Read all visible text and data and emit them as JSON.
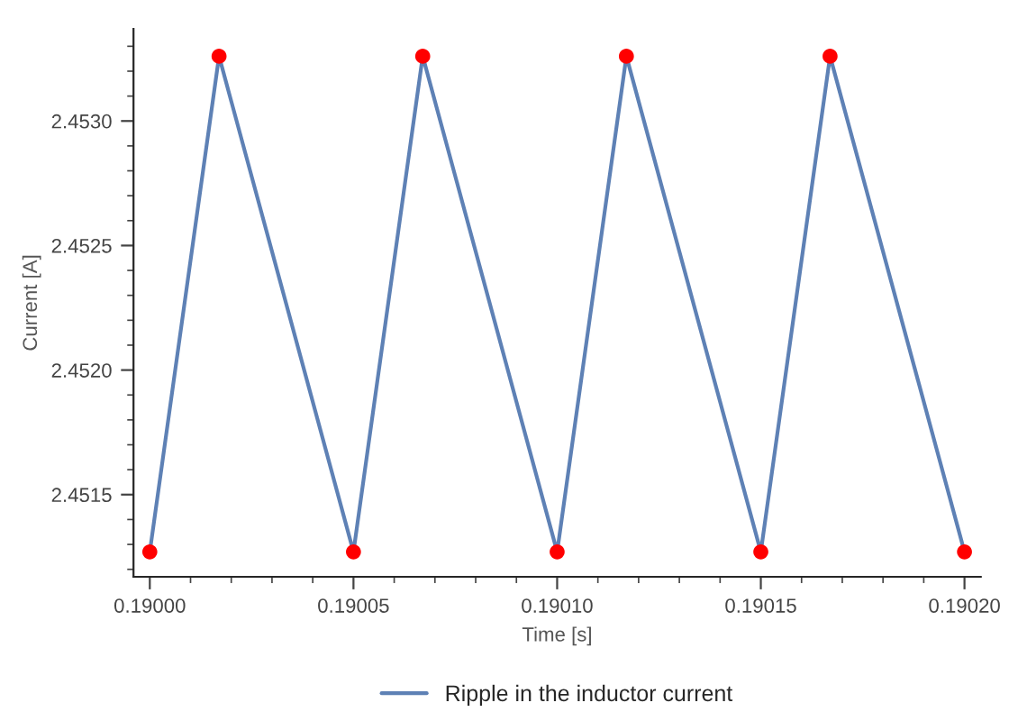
{
  "chart_data": {
    "type": "line",
    "xlabel": "Time [s]",
    "ylabel": "Current [A]",
    "x": [
      0.19,
      0.190017,
      0.19005,
      0.190067,
      0.1901,
      0.190117,
      0.19015,
      0.190167,
      0.1902
    ],
    "series": [
      {
        "name": "Ripple in the inductor current",
        "color": "#5e81b5",
        "marker": "none",
        "values": [
          2.45127,
          2.45326,
          2.45127,
          2.45326,
          2.45127,
          2.45326,
          2.45127,
          2.45326,
          2.45127
        ]
      },
      {
        "type": "scatter",
        "color": "#ff0000",
        "marker": "circle",
        "values": [
          2.45127,
          2.45326,
          2.45127,
          2.45326,
          2.45127,
          2.45326,
          2.45127,
          2.45326,
          2.45127
        ]
      }
    ],
    "xlim": [
      0.189996,
      0.190204
    ],
    "ylim": [
      2.45117,
      2.45337
    ],
    "xticks": [
      {
        "value": 0.19,
        "label": "0.19000"
      },
      {
        "value": 0.19001,
        "label": null
      },
      {
        "value": 0.19002,
        "label": null
      },
      {
        "value": 0.19003,
        "label": null
      },
      {
        "value": 0.19004,
        "label": null
      },
      {
        "value": 0.19005,
        "label": "0.19005"
      },
      {
        "value": 0.19006,
        "label": null
      },
      {
        "value": 0.19007,
        "label": null
      },
      {
        "value": 0.19008,
        "label": null
      },
      {
        "value": 0.19009,
        "label": null
      },
      {
        "value": 0.1901,
        "label": "0.19010"
      },
      {
        "value": 0.19011,
        "label": null
      },
      {
        "value": 0.19012,
        "label": null
      },
      {
        "value": 0.19013,
        "label": null
      },
      {
        "value": 0.19014,
        "label": null
      },
      {
        "value": 0.19015,
        "label": "0.19015"
      },
      {
        "value": 0.19016,
        "label": null
      },
      {
        "value": 0.19017,
        "label": null
      },
      {
        "value": 0.19018,
        "label": null
      },
      {
        "value": 0.19019,
        "label": null
      },
      {
        "value": 0.1902,
        "label": "0.19020"
      }
    ],
    "yticks": [
      {
        "value": 2.4512,
        "label": null
      },
      {
        "value": 2.4513,
        "label": null
      },
      {
        "value": 2.4514,
        "label": null
      },
      {
        "value": 2.4515,
        "label": "2.4515"
      },
      {
        "value": 2.4516,
        "label": null
      },
      {
        "value": 2.4517,
        "label": null
      },
      {
        "value": 2.4518,
        "label": null
      },
      {
        "value": 2.4519,
        "label": null
      },
      {
        "value": 2.452,
        "label": "2.4520"
      },
      {
        "value": 2.4521,
        "label": null
      },
      {
        "value": 2.4522,
        "label": null
      },
      {
        "value": 2.4523,
        "label": null
      },
      {
        "value": 2.4524,
        "label": null
      },
      {
        "value": 2.4525,
        "label": "2.4525"
      },
      {
        "value": 2.4526,
        "label": null
      },
      {
        "value": 2.4527,
        "label": null
      },
      {
        "value": 2.4528,
        "label": null
      },
      {
        "value": 2.4529,
        "label": null
      },
      {
        "value": 2.453,
        "label": "2.4530"
      },
      {
        "value": 2.4531,
        "label": null
      },
      {
        "value": 2.4532,
        "label": null
      },
      {
        "value": 2.4533,
        "label": null
      }
    ],
    "grid": false,
    "legend": "bottom"
  }
}
